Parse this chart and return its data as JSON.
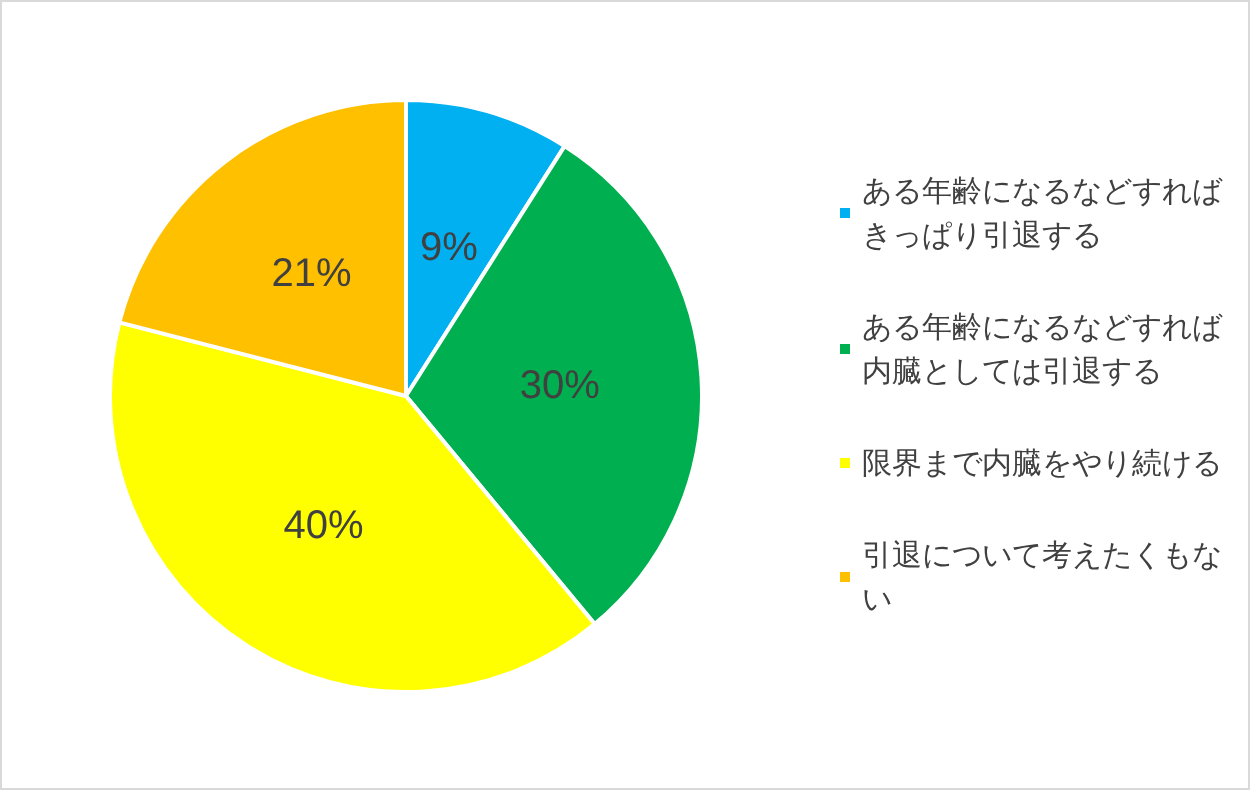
{
  "chart_data": {
    "type": "pie",
    "categories": [
      "ある年齢になるなどすればきっぱり引退する",
      "ある年齢になるなどすれば内臓としては引退する",
      "限界まで内臓をやり続ける",
      "引退について考えたくもない"
    ],
    "values": [
      9,
      30,
      40,
      21
    ],
    "colors": [
      "#00b0f0",
      "#00b050",
      "#ffff00",
      "#ffc000"
    ],
    "value_labels": [
      "9%",
      "30%",
      "40%",
      "21%"
    ],
    "legend": "right"
  }
}
